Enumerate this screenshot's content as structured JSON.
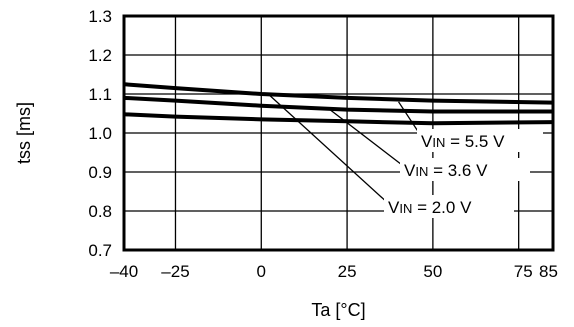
{
  "chart_data": {
    "type": "line",
    "xlabel": "Ta [°C]",
    "ylabel": "tss [ms]",
    "xlim": [
      -40,
      85
    ],
    "ylim": [
      0.7,
      1.3
    ],
    "x_ticks": [
      -40,
      -25,
      0,
      25,
      50,
      75,
      85
    ],
    "x_tick_labels": [
      "–40",
      "–25",
      "0",
      "25",
      "50",
      "75",
      "85"
    ],
    "y_ticks": [
      0.7,
      0.8,
      0.9,
      1.0,
      1.1,
      1.2,
      1.3
    ],
    "y_tick_labels": [
      "0.7",
      "0.8",
      "0.9",
      "1.0",
      "1.1",
      "1.2",
      "1.3"
    ],
    "grid": true,
    "series": [
      {
        "name": "VIN = 5.5 V",
        "x": [
          -40,
          -25,
          0,
          25,
          50,
          85
        ],
        "values": [
          1.125,
          1.115,
          1.1,
          1.09,
          1.083,
          1.078
        ]
      },
      {
        "name": "VIN = 3.6 V",
        "x": [
          -40,
          -25,
          0,
          25,
          50,
          85
        ],
        "values": [
          1.09,
          1.083,
          1.07,
          1.06,
          1.055,
          1.055
        ]
      },
      {
        "name": "VIN = 2.0 V",
        "x": [
          -40,
          -25,
          0,
          25,
          50,
          85
        ],
        "values": [
          1.048,
          1.042,
          1.035,
          1.03,
          1.025,
          1.028
        ]
      }
    ],
    "annotations": [
      {
        "prefix": "V",
        "sub": "IN",
        "suffix": " = 5.5 V",
        "series": 0
      },
      {
        "prefix": "V",
        "sub": "IN",
        "suffix": " = 3.6 V",
        "series": 1
      },
      {
        "prefix": "V",
        "sub": "IN",
        "suffix": " = 2.0 V",
        "series": 2
      }
    ]
  }
}
